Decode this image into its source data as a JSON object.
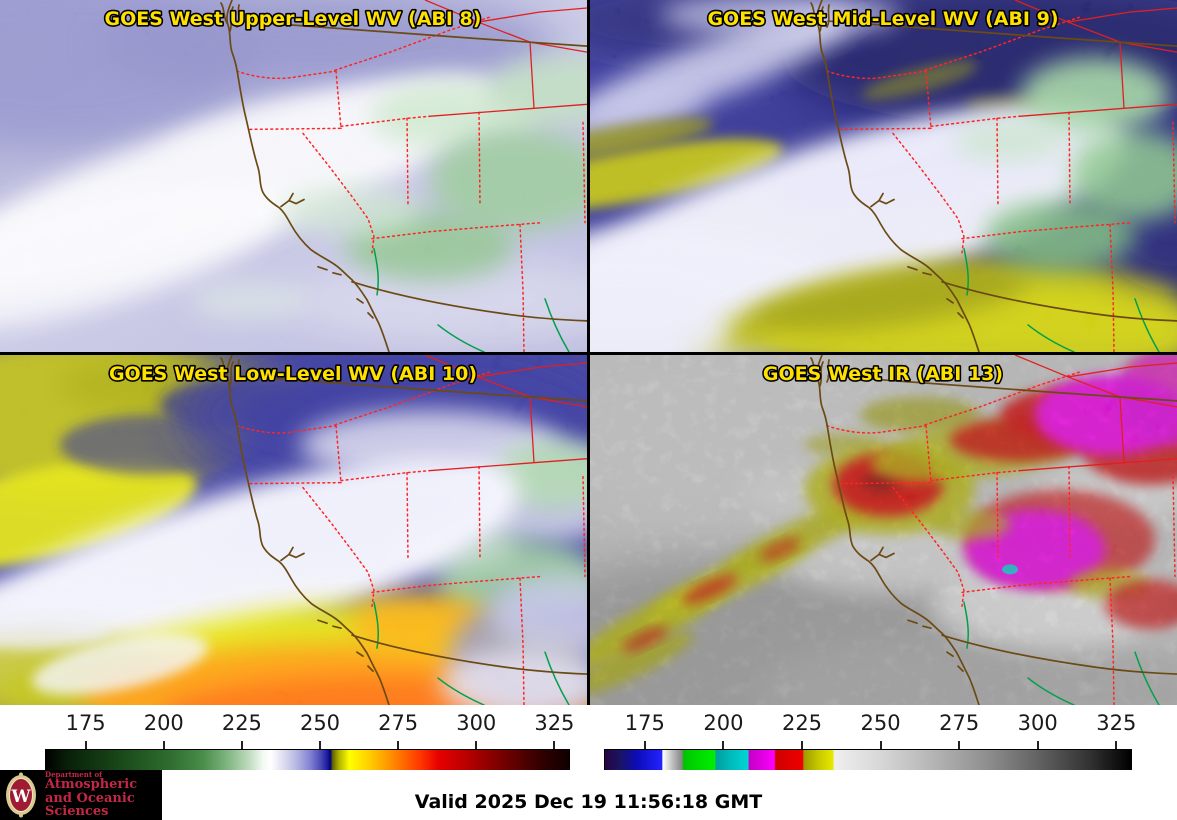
{
  "panels": [
    {
      "title": "GOES West Upper-Level WV (ABI 8)"
    },
    {
      "title": "GOES West Mid-Level WV (ABI 9)"
    },
    {
      "title": "GOES West Low-Level WV (ABI 10)"
    },
    {
      "title": "GOES West IR (ABI 13)"
    }
  ],
  "colorbars": {
    "left": {
      "range": [
        162,
        330
      ],
      "ticks": [
        175,
        200,
        225,
        250,
        275,
        300,
        325
      ],
      "stops": [
        {
          "p": 0,
          "c": "#000000"
        },
        {
          "p": 4,
          "c": "#081f08"
        },
        {
          "p": 9,
          "c": "#103410"
        },
        {
          "p": 16,
          "c": "#1d4f1d"
        },
        {
          "p": 24,
          "c": "#2f6e2f"
        },
        {
          "p": 30,
          "c": "#4a8c4a"
        },
        {
          "p": 35,
          "c": "#84b884"
        },
        {
          "p": 39,
          "c": "#c2ddc2"
        },
        {
          "p": 41.5,
          "c": "#f4f9f4"
        },
        {
          "p": 43,
          "c": "#ffffff"
        },
        {
          "p": 45.5,
          "c": "#dcdcef"
        },
        {
          "p": 48,
          "c": "#b4b4e2"
        },
        {
          "p": 50.5,
          "c": "#8383d2"
        },
        {
          "p": 52.5,
          "c": "#4a4ab8"
        },
        {
          "p": 53.8,
          "c": "#1c1c9c"
        },
        {
          "p": 54.4,
          "c": "#00007c"
        },
        {
          "p": 54.8,
          "c": "#646400"
        },
        {
          "p": 56,
          "c": "#b0b000"
        },
        {
          "p": 58,
          "c": "#ffff00"
        },
        {
          "p": 61.5,
          "c": "#ffd200"
        },
        {
          "p": 65,
          "c": "#ff9e00"
        },
        {
          "p": 68.5,
          "c": "#ff6600"
        },
        {
          "p": 71.5,
          "c": "#ff3800"
        },
        {
          "p": 75,
          "c": "#e80000"
        },
        {
          "p": 80,
          "c": "#bc0000"
        },
        {
          "p": 85,
          "c": "#8c0000"
        },
        {
          "p": 90,
          "c": "#5c0000"
        },
        {
          "p": 95,
          "c": "#300000"
        },
        {
          "p": 100,
          "c": "#100000"
        }
      ]
    },
    "right": {
      "range": [
        162,
        330
      ],
      "ticks": [
        175,
        200,
        225,
        250,
        275,
        300,
        325
      ],
      "stops": [
        {
          "p": 0,
          "c": "#260640"
        },
        {
          "p": 3,
          "c": "#1a1466"
        },
        {
          "p": 6,
          "c": "#0c0cb6"
        },
        {
          "p": 10.8,
          "c": "#2222ff"
        },
        {
          "p": 11,
          "c": "#ffffff"
        },
        {
          "p": 12.8,
          "c": "#c0c0c0"
        },
        {
          "p": 14.7,
          "c": "#838383"
        },
        {
          "p": 14.9,
          "c": "#00c400"
        },
        {
          "p": 18,
          "c": "#00dc00"
        },
        {
          "p": 20.9,
          "c": "#00ee00"
        },
        {
          "p": 21.1,
          "c": "#009e9e"
        },
        {
          "p": 24,
          "c": "#00bcbc"
        },
        {
          "p": 27.2,
          "c": "#00d4d4"
        },
        {
          "p": 27.4,
          "c": "#c400c4"
        },
        {
          "p": 30,
          "c": "#e200e2"
        },
        {
          "p": 32.2,
          "c": "#ff00ff"
        },
        {
          "p": 32.4,
          "c": "#cc0000"
        },
        {
          "p": 35,
          "c": "#e00000"
        },
        {
          "p": 37.6,
          "c": "#ee0000"
        },
        {
          "p": 37.8,
          "c": "#9c9c00"
        },
        {
          "p": 40.5,
          "c": "#c6c600"
        },
        {
          "p": 43.3,
          "c": "#e8e800"
        },
        {
          "p": 43.6,
          "c": "#efefef"
        },
        {
          "p": 52,
          "c": "#d8d8d8"
        },
        {
          "p": 62,
          "c": "#b6b6b6"
        },
        {
          "p": 72,
          "c": "#919191"
        },
        {
          "p": 82,
          "c": "#646464"
        },
        {
          "p": 92,
          "c": "#333333"
        },
        {
          "p": 100,
          "c": "#000000"
        }
      ]
    }
  },
  "logo": {
    "monogram": "W",
    "line1": "Department of",
    "line2": "Atmospheric",
    "line3": "and Oceanic Sciences"
  },
  "footer": {
    "valid_label": "Valid 2025 Dec 19 11:56:18 GMT"
  },
  "colors": {
    "panel_title": "#ffe100",
    "panel_title_outline": "#000000",
    "state_border": "#ff2525",
    "coastline": "#6b4a14",
    "river": "#00a04a",
    "logo_text": "#c22845"
  }
}
